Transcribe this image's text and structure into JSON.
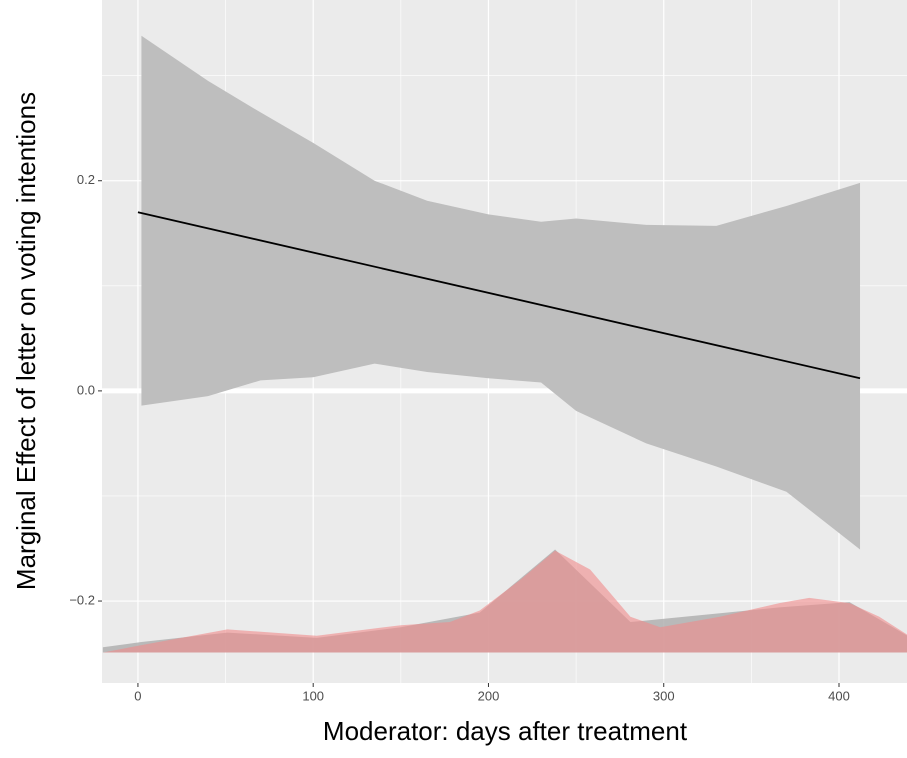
{
  "chart_data": {
    "type": "line",
    "x_label": "Moderator: days after treatment",
    "y_label": "Marginal Effect of letter on voting intentions",
    "xlim": [
      -20.5,
      438.8
    ],
    "ylim": [
      -0.278,
      0.372
    ],
    "xticks": [
      0,
      100,
      200,
      300,
      400
    ],
    "yticks": [
      {
        "value": -0.2,
        "label": "−0.2"
      },
      {
        "value": 0,
        "label": "0.0"
      },
      0.2
    ],
    "grid": true,
    "hline": 0,
    "series": [
      {
        "x": [
          0,
          412
        ],
        "values": [
          0.17,
          0.012
        ],
        "color": "#000000"
      }
    ],
    "band": {
      "x": [
        2,
        40,
        70,
        100,
        135,
        165,
        200,
        230,
        250,
        290,
        330,
        370,
        412
      ],
      "upper": [
        0.338,
        0.295,
        0.265,
        0.236,
        0.2,
        0.181,
        0.168,
        0.161,
        0.164,
        0.158,
        0.157,
        0.176,
        0.198
      ],
      "lower": [
        -0.014,
        -0.005,
        0.01,
        0.013,
        0.026,
        0.018,
        0.012,
        0.008,
        -0.019,
        -0.05,
        -0.072,
        -0.096,
        -0.151
      ],
      "color": "#bebebe"
    },
    "density_baseline": -0.249,
    "densities": [
      {
        "x": [
          -20,
          2,
          51,
          102,
          150,
          195,
          238,
          281,
          366,
          406,
          439
        ],
        "values": [
          -0.244,
          -0.239,
          -0.23,
          -0.235,
          -0.225,
          -0.211,
          -0.151,
          -0.22,
          -0.206,
          -0.201,
          -0.233
        ],
        "color": "#b0b0b0"
      },
      {
        "x": [
          -20,
          2,
          51,
          102,
          150,
          178,
          195,
          218,
          238,
          258,
          281,
          298,
          332,
          366,
          383,
          406,
          423,
          439
        ],
        "values": [
          -0.249,
          -0.242,
          -0.227,
          -0.233,
          -0.223,
          -0.22,
          -0.209,
          -0.18,
          -0.152,
          -0.17,
          -0.215,
          -0.225,
          -0.215,
          -0.202,
          -0.197,
          -0.202,
          -0.215,
          -0.232
        ],
        "color": "#f08a8a"
      }
    ]
  }
}
